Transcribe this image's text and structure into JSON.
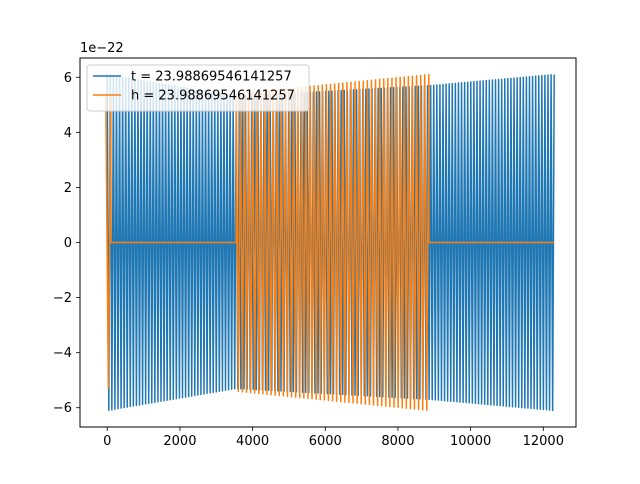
{
  "chart_data": {
    "type": "line",
    "title": "",
    "xlabel": "",
    "ylabel": "",
    "y_scale_offset": "1e−22",
    "xlim": [
      -750,
      12900
    ],
    "ylim": [
      -6.7,
      6.7
    ],
    "x_ticks": [
      0,
      2000,
      4000,
      6000,
      8000,
      10000,
      12000
    ],
    "x_tick_labels": [
      "0",
      "2000",
      "4000",
      "6000",
      "8000",
      "10000",
      "12000"
    ],
    "y_ticks": [
      -6,
      -4,
      -2,
      0,
      2,
      4,
      6
    ],
    "y_tick_labels": [
      "−6",
      "−4",
      "−2",
      "0",
      "2",
      "4",
      "6"
    ],
    "grid": false,
    "legend_position": "upper-left",
    "series": [
      {
        "name": "t = 23.98869546141257",
        "color": "#1f77b4",
        "description_values": {
          "segments": [
            {
              "x_start": 0,
              "x_end": 3550,
              "amp_start": 6.1,
              "amp_end": 5.3,
              "center": 0
            },
            {
              "x_start": 3550,
              "x_end": 8900,
              "amp_start": 5.3,
              "amp_end": 5.7,
              "center": 0
            },
            {
              "x_start": 8900,
              "x_end": 12300,
              "amp_start": 5.7,
              "amp_end": 6.1,
              "center": 0
            }
          ],
          "cycles": 145
        }
      },
      {
        "name": "h = 23.98869546141257",
        "color": "#ff7f0e",
        "description_values": {
          "segments": [
            {
              "x_start": -40,
              "x_end": 100,
              "amp_start": 5.3,
              "amp_end": 5.3,
              "center": 0
            },
            {
              "x_start": 100,
              "x_end": 3550,
              "amp_start": 0,
              "amp_end": 0,
              "center": 0
            },
            {
              "x_start": 3550,
              "x_end": 8850,
              "amp_start": 5.4,
              "amp_end": 6.1,
              "center": 0
            },
            {
              "x_start": 8850,
              "x_end": 12300,
              "amp_start": 0,
              "amp_end": 0,
              "center": 0
            }
          ],
          "cycles": 110
        }
      }
    ]
  }
}
